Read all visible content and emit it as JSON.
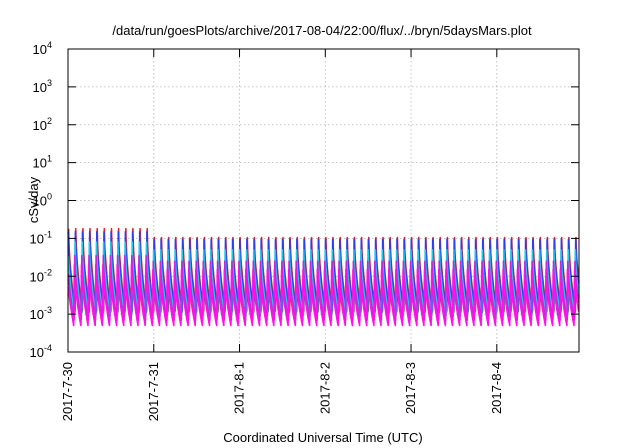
{
  "chart_data": {
    "type": "line",
    "title": "/data/run/goesPlots/archive/2017-08-04/22:00/flux/../bryn/5daysMars.plot",
    "xlabel": "Coordinated Universal Time (UTC)",
    "ylabel": "cSv/day",
    "y_scale": "log",
    "ylim": [
      0.0001,
      10000
    ],
    "y_ticks": [
      {
        "value": 0.0001,
        "base": "10",
        "exp": "-4"
      },
      {
        "value": 0.001,
        "base": "10",
        "exp": "-3"
      },
      {
        "value": 0.01,
        "base": "10",
        "exp": "-2"
      },
      {
        "value": 0.1,
        "base": "10",
        "exp": "-1"
      },
      {
        "value": 1,
        "base": "10",
        "exp": "0"
      },
      {
        "value": 10,
        "base": "10",
        "exp": "1"
      },
      {
        "value": 100,
        "base": "10",
        "exp": "2"
      },
      {
        "value": 1000,
        "base": "10",
        "exp": "3"
      },
      {
        "value": 10000,
        "base": "10",
        "exp": "4"
      }
    ],
    "xlim": [
      "2017-07-30T00:00",
      "2017-08-04T23:00"
    ],
    "x_ticks": [
      "2017-7-30",
      "2017-7-31",
      "2017-8-1",
      "2017-8-2",
      "2017-8-3",
      "2017-8-4"
    ],
    "grid": true,
    "oscillation_period_hours": 2,
    "series": [
      {
        "color": "#e8221e",
        "min": 0.0012,
        "peak_first_day": 0.18,
        "peak": 0.105
      },
      {
        "color": "#2a3ff0",
        "min": 0.0011,
        "peak_first_day": 0.15,
        "peak": 0.095
      },
      {
        "color": "#1ec8e6",
        "min": 0.0009,
        "peak_first_day": 0.08,
        "peak": 0.05
      },
      {
        "color": "#c428d8",
        "min": 0.0007,
        "peak_first_day": 0.035,
        "peak": 0.025
      },
      {
        "color": "#ff10e8",
        "min": 0.0005,
        "peak_first_day": 0.02,
        "peak": 0.015
      }
    ]
  }
}
